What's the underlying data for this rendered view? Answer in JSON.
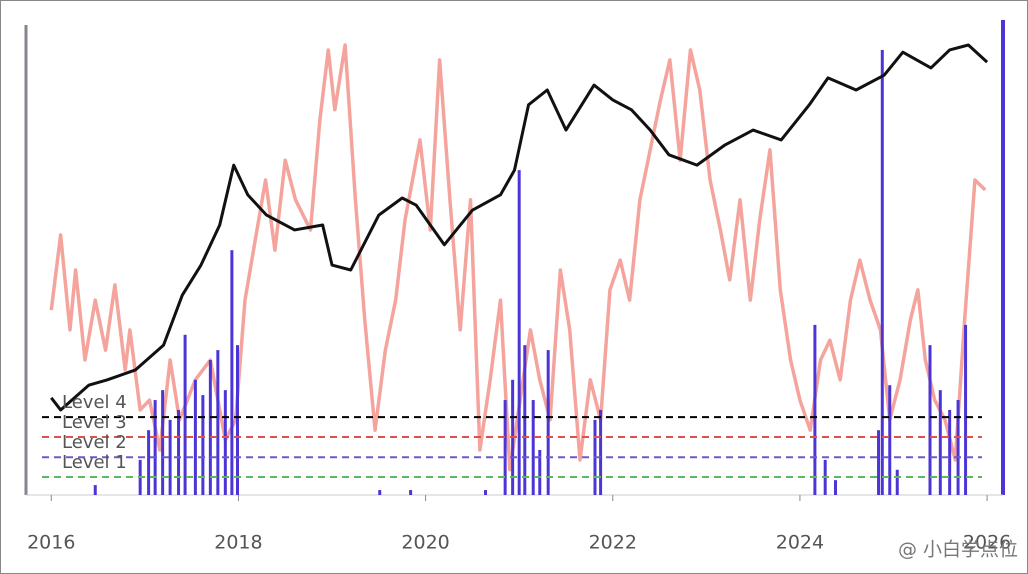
{
  "chart_data": {
    "type": "line",
    "xlim": [
      2015.73,
      2026.17
    ],
    "ylim": [
      0,
      100
    ],
    "xticks": [
      2016,
      2018,
      2020,
      2022,
      2024,
      2026
    ],
    "watermark": "@ 小白学点位",
    "series": [
      {
        "kind": "line",
        "color": "#f4a49c",
        "width": 3.5,
        "x": [
          2016.0,
          2016.1,
          2016.2,
          2016.26,
          2016.36,
          2016.47,
          2016.58,
          2016.68,
          2016.79,
          2016.84,
          2016.95,
          2017.05,
          2017.16,
          2017.27,
          2017.37,
          2017.54,
          2017.7,
          2017.86,
          2017.97,
          2018.07,
          2018.18,
          2018.29,
          2018.39,
          2018.5,
          2018.61,
          2018.77,
          2018.87,
          2018.96,
          2019.03,
          2019.14,
          2019.25,
          2019.35,
          2019.46,
          2019.57,
          2019.68,
          2019.78,
          2019.94,
          2020.05,
          2020.15,
          2020.26,
          2020.37,
          2020.48,
          2020.58,
          2020.69,
          2020.8,
          2020.9,
          2021.01,
          2021.12,
          2021.22,
          2021.33,
          2021.44,
          2021.54,
          2021.65,
          2021.76,
          2021.87,
          2021.97,
          2022.08,
          2022.18,
          2022.29,
          2022.4,
          2022.51,
          2022.61,
          2022.72,
          2022.83,
          2022.93,
          2023.04,
          2023.15,
          2023.25,
          2023.36,
          2023.47,
          2023.57,
          2023.68,
          2023.79,
          2023.9,
          2024.0,
          2024.11,
          2024.22,
          2024.32,
          2024.43,
          2024.54,
          2024.64,
          2024.75,
          2024.86,
          2024.96,
          2025.07,
          2025.18,
          2025.26,
          2025.34,
          2025.44,
          2025.55,
          2025.66,
          2025.76,
          2025.87,
          2025.98
        ],
        "values": [
          41.1,
          57.8,
          36.7,
          50,
          30,
          43.3,
          32.2,
          46.7,
          27.8,
          36.7,
          18.9,
          21.1,
          10,
          30,
          16.7,
          25.6,
          30,
          12.2,
          16.7,
          43.3,
          56.7,
          70,
          54.4,
          74.4,
          65.6,
          58.9,
          83.3,
          98.9,
          85.6,
          100,
          65.6,
          38.9,
          14.4,
          32.2,
          43.3,
          61.1,
          78.9,
          58.9,
          96.7,
          65.6,
          36.7,
          65.6,
          10,
          25.6,
          43.3,
          5.6,
          21.1,
          36.7,
          25.6,
          16.7,
          50,
          36.7,
          7.8,
          25.6,
          16.7,
          45.6,
          52.2,
          43.3,
          65.6,
          76.7,
          87.8,
          96.7,
          74.4,
          98.9,
          90,
          70,
          58.9,
          47.8,
          65.6,
          43.3,
          61.1,
          76.7,
          45.6,
          30,
          21.1,
          14.4,
          30,
          34.4,
          25.6,
          43.3,
          52.2,
          43.3,
          36.7,
          16.7,
          25.6,
          38.9,
          45.6,
          30,
          21.1,
          16.7,
          7.8,
          38.9,
          70,
          67.8
        ]
      },
      {
        "kind": "bar",
        "color": "#4b35d6",
        "x": [
          2016.47,
          2016.95,
          2017.04,
          2017.11,
          2017.19,
          2017.27,
          2017.36,
          2017.43,
          2017.54,
          2017.62,
          2017.7,
          2017.78,
          2017.86,
          2017.93,
          2017.99,
          2019.51,
          2019.84,
          2020.64,
          2020.85,
          2020.93,
          2021.0,
          2021.06,
          2021.15,
          2021.22,
          2021.31,
          2021.81,
          2021.87,
          2024.16,
          2024.27,
          2024.38,
          2024.84,
          2024.88,
          2024.96,
          2025.04,
          2025.39,
          2025.5,
          2025.6,
          2025.69,
          2025.77
        ],
        "values": [
          2.2,
          7.8,
          14.4,
          21.1,
          23.3,
          16.7,
          18.9,
          35.6,
          25.6,
          22.2,
          30,
          32.2,
          23.3,
          54.4,
          33.3,
          1.1,
          1.1,
          1.1,
          21.1,
          25.6,
          72.2,
          33.3,
          21.1,
          10,
          32.2,
          16.7,
          18.9,
          37.8,
          7.8,
          3.3,
          14.4,
          98.9,
          24.4,
          5.6,
          33.3,
          23.3,
          18.9,
          21.1,
          37.8
        ]
      },
      {
        "kind": "line",
        "color": "#111111",
        "width": 3,
        "x": [
          2016.0,
          2016.1,
          2016.4,
          2016.6,
          2016.9,
          2017.2,
          2017.4,
          2017.6,
          2017.8,
          2017.95,
          2018.1,
          2018.3,
          2018.6,
          2018.9,
          2019.0,
          2019.2,
          2019.5,
          2019.75,
          2019.9,
          2020.2,
          2020.5,
          2020.8,
          2020.95,
          2021.1,
          2021.3,
          2021.5,
          2021.8,
          2022.0,
          2022.2,
          2022.4,
          2022.6,
          2022.9,
          2023.2,
          2023.5,
          2023.8,
          2024.1,
          2024.3,
          2024.6,
          2024.9,
          2025.1,
          2025.4,
          2025.6,
          2025.8,
          2026.0
        ],
        "values": [
          21.6,
          18.9,
          24.4,
          25.6,
          27.8,
          33.3,
          44.4,
          51.1,
          60,
          73.3,
          66.7,
          62.2,
          58.9,
          60,
          51.1,
          50,
          62.2,
          66,
          64.4,
          55.6,
          63.3,
          66.7,
          72.2,
          86.7,
          90,
          81.1,
          91.1,
          87.8,
          85.6,
          81.1,
          75.6,
          73.3,
          77.8,
          81.1,
          78.9,
          86.7,
          92.7,
          90,
          93.3,
          98.4,
          94.9,
          98.9,
          100,
          96.2
        ]
      }
    ],
    "levels": [
      {
        "label": "Level 4",
        "value": 17.3,
        "color": "#000000"
      },
      {
        "label": "Level 3",
        "value": 12.9,
        "color": "#d9534f"
      },
      {
        "label": "Level 2",
        "value": 8.4,
        "color": "#6a5acd"
      },
      {
        "label": "Level 1",
        "value": 4,
        "color": "#5cb85c"
      }
    ]
  }
}
